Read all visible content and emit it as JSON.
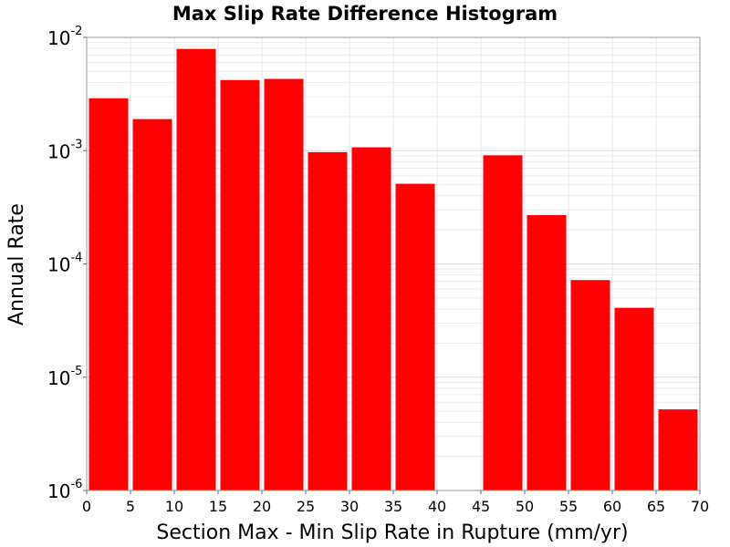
{
  "chart_data": {
    "type": "bar",
    "title": "Max Slip Rate Difference Histogram",
    "xlabel": "Section Max - Min Slip Rate in Rupture (mm/yr)",
    "ylabel": "Annual Rate",
    "y_scale": "log",
    "ylim": [
      1e-06,
      0.01
    ],
    "xlim": [
      0,
      70
    ],
    "bin_width": 5,
    "x_ticks": [
      "0",
      "5",
      "10",
      "15",
      "20",
      "25",
      "30",
      "35",
      "40",
      "45",
      "50",
      "55",
      "60",
      "65",
      "70"
    ],
    "y_ticks": [
      {
        "base": "10",
        "exp": "-6",
        "value": 1e-06
      },
      {
        "base": "10",
        "exp": "-5",
        "value": 1e-05
      },
      {
        "base": "10",
        "exp": "-4",
        "value": 0.0001
      },
      {
        "base": "10",
        "exp": "-3",
        "value": 0.001
      },
      {
        "base": "10",
        "exp": "-2",
        "value": 0.01
      }
    ],
    "bins": [
      {
        "x0": 0,
        "x1": 5,
        "value": 0.0029
      },
      {
        "x0": 5,
        "x1": 10,
        "value": 0.0019
      },
      {
        "x0": 10,
        "x1": 15,
        "value": 0.0079
      },
      {
        "x0": 15,
        "x1": 20,
        "value": 0.0042
      },
      {
        "x0": 20,
        "x1": 25,
        "value": 0.0043
      },
      {
        "x0": 25,
        "x1": 30,
        "value": 0.00097
      },
      {
        "x0": 30,
        "x1": 35,
        "value": 0.00107
      },
      {
        "x0": 35,
        "x1": 40,
        "value": 0.00051
      },
      {
        "x0": 40,
        "x1": 45,
        "value": null
      },
      {
        "x0": 45,
        "x1": 50,
        "value": 0.00091
      },
      {
        "x0": 50,
        "x1": 55,
        "value": 0.00027
      },
      {
        "x0": 55,
        "x1": 60,
        "value": 7.2e-05
      },
      {
        "x0": 60,
        "x1": 65,
        "value": 4.1e-05
      },
      {
        "x0": 65,
        "x1": 70,
        "value": 5.2e-06
      }
    ],
    "bar_color": "#ff0000",
    "grid": true
  }
}
